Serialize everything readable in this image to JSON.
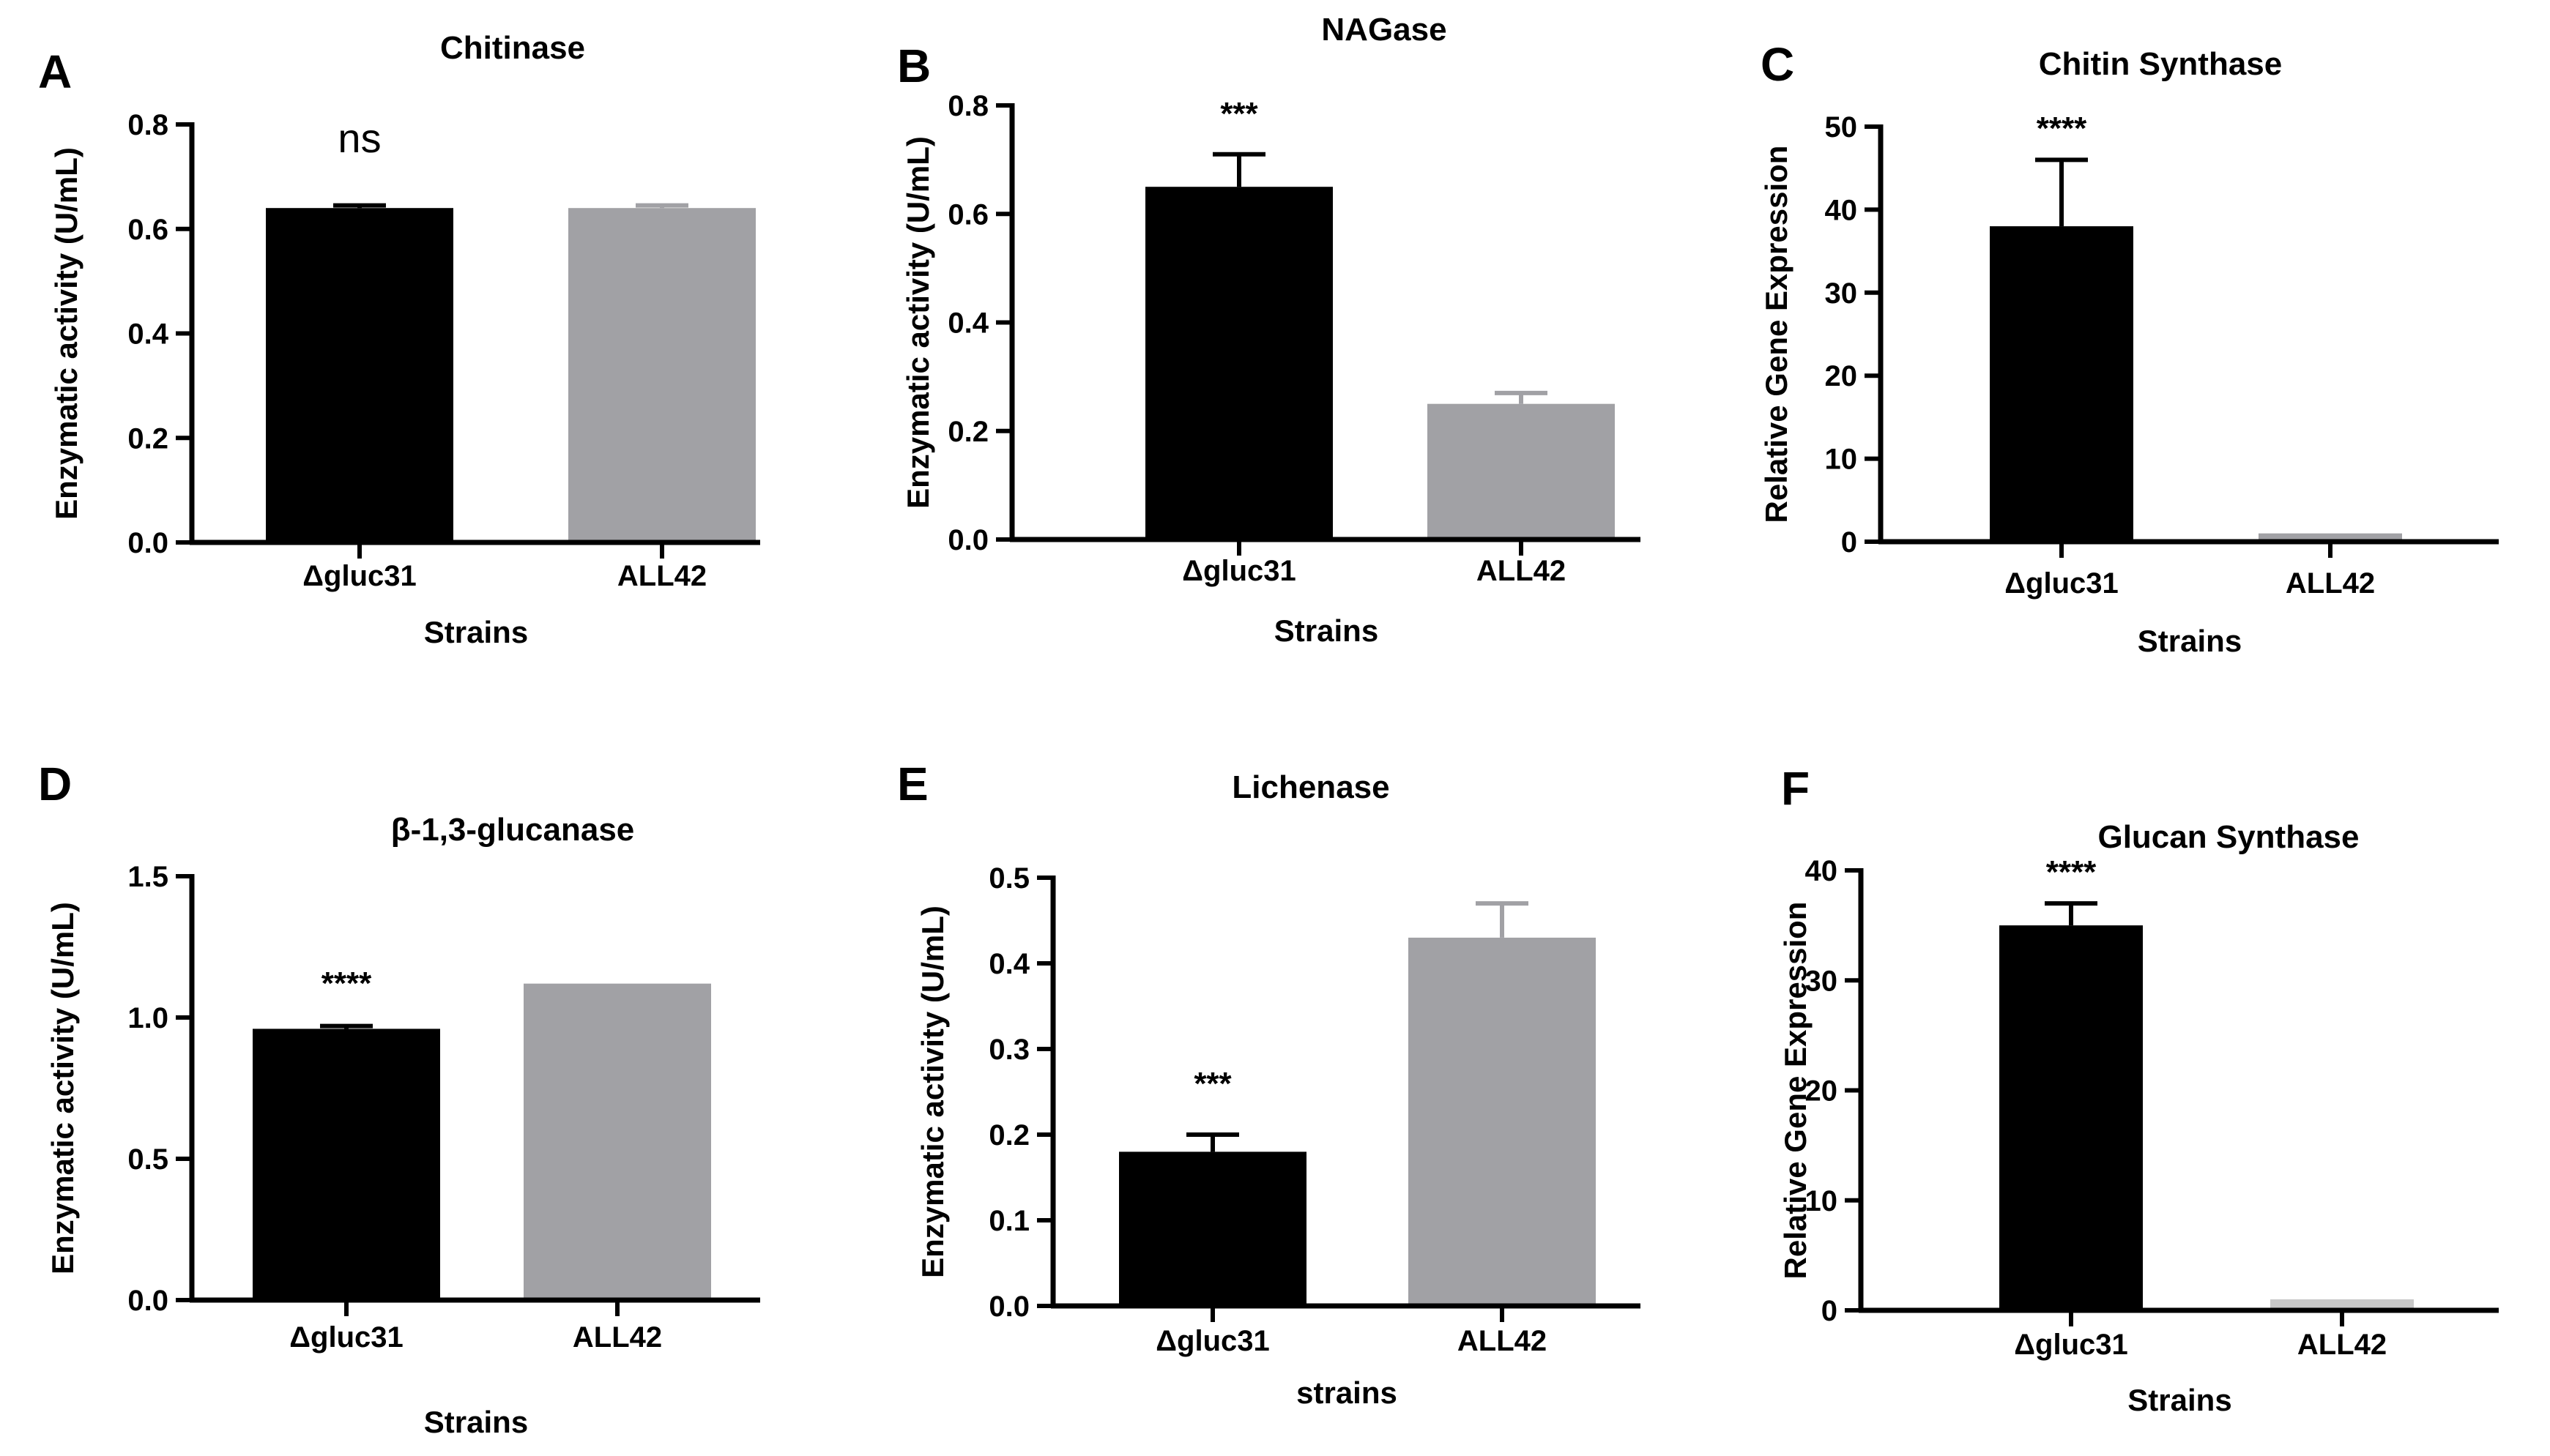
{
  "chart_data": [
    {
      "panel": "A",
      "type": "bar",
      "title": "Chitinase",
      "xlabel": "Strains",
      "ylabel": "Enzymatic activity (U/mL)",
      "ylim": [
        0,
        0.8
      ],
      "yticks": [
        "0.0",
        "0.2",
        "0.4",
        "0.6",
        "0.8"
      ],
      "categories": [
        "Δgluc31",
        "ALL42"
      ],
      "values": [
        0.64,
        0.64
      ],
      "errors": [
        0.005,
        0.005
      ],
      "colors": [
        "#000000",
        "#a1a1a5"
      ],
      "significance": "ns"
    },
    {
      "panel": "B",
      "type": "bar",
      "title": "NAGase",
      "xlabel": "Strains",
      "ylabel": "Enzymatic activity (U/mL)",
      "ylim": [
        0,
        0.8
      ],
      "yticks": [
        "0.0",
        "0.2",
        "0.4",
        "0.6",
        "0.8"
      ],
      "categories": [
        "Δgluc31",
        "ALL42"
      ],
      "values": [
        0.65,
        0.25
      ],
      "errors": [
        0.06,
        0.02
      ],
      "colors": [
        "#000000",
        "#a1a1a5"
      ],
      "significance": "***"
    },
    {
      "panel": "C",
      "type": "bar",
      "title": "Chitin Synthase",
      "xlabel": "Strains",
      "ylabel": "Relative Gene Expression",
      "ylim": [
        0,
        50
      ],
      "yticks": [
        "0",
        "10",
        "20",
        "30",
        "40",
        "50"
      ],
      "categories": [
        "Δgluc31",
        "ALL42"
      ],
      "values": [
        38,
        1
      ],
      "errors": [
        8,
        0
      ],
      "colors": [
        "#000000",
        "#a1a1a5"
      ],
      "significance": "****"
    },
    {
      "panel": "D",
      "type": "bar",
      "title": "β-1,3-glucanase",
      "xlabel": "Strains",
      "ylabel": "Enzymatic activity (U/mL)",
      "ylim": [
        0,
        1.5
      ],
      "yticks": [
        "0.0",
        "0.5",
        "1.0",
        "1.5"
      ],
      "categories": [
        "Δgluc31",
        "ALL42"
      ],
      "values": [
        0.96,
        1.12
      ],
      "errors": [
        0.01,
        0
      ],
      "colors": [
        "#000000",
        "#a1a1a5"
      ],
      "significance": "****"
    },
    {
      "panel": "E",
      "type": "bar",
      "title": "Lichenase",
      "xlabel": "strains",
      "ylabel": "Enzymatic activity (U/mL)",
      "ylim": [
        0,
        0.5
      ],
      "yticks": [
        "0.0",
        "0.1",
        "0.2",
        "0.3",
        "0.4",
        "0.5"
      ],
      "categories": [
        "Δgluc31",
        "ALL42"
      ],
      "values": [
        0.18,
        0.43
      ],
      "errors": [
        0.02,
        0.04
      ],
      "colors": [
        "#000000",
        "#a1a1a5"
      ],
      "significance": "***"
    },
    {
      "panel": "F",
      "type": "bar",
      "title": "Glucan Synthase",
      "xlabel": "Strains",
      "ylabel": "Relative Gene Expression",
      "ylim": [
        0,
        40
      ],
      "yticks": [
        "0",
        "10",
        "20",
        "30",
        "40"
      ],
      "categories": [
        "Δgluc31",
        "ALL42"
      ],
      "values": [
        35,
        1
      ],
      "errors": [
        2,
        0
      ],
      "colors": [
        "#000000",
        "#c8c8c8"
      ],
      "significance": "****"
    }
  ]
}
